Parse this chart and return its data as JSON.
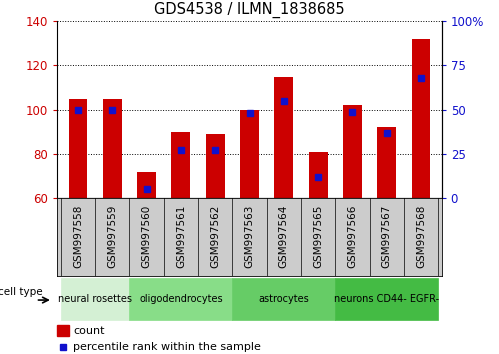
{
  "title": "GDS4538 / ILMN_1838685",
  "samples": [
    "GSM997558",
    "GSM997559",
    "GSM997560",
    "GSM997561",
    "GSM997562",
    "GSM997563",
    "GSM997564",
    "GSM997565",
    "GSM997566",
    "GSM997567",
    "GSM997568"
  ],
  "count_values": [
    105,
    105,
    72,
    90,
    89,
    100,
    115,
    81,
    102,
    92,
    132
  ],
  "percentile_values": [
    50,
    50,
    5,
    27,
    27,
    48,
    55,
    12,
    49,
    37,
    68
  ],
  "ylim": [
    60,
    140
  ],
  "yticks_left": [
    60,
    80,
    100,
    120,
    140
  ],
  "yticks_right_vals": [
    0,
    25,
    50,
    75,
    100
  ],
  "yticks_right_labels": [
    "0",
    "25",
    "50",
    "75",
    "100%"
  ],
  "bar_color": "#cc0000",
  "pct_color": "#1111cc",
  "cell_type_label": "cell type",
  "legend_count": "count",
  "legend_pct": "percentile rank within the sample",
  "tick_color_left": "#cc0000",
  "tick_color_right": "#1111cc",
  "bar_width": 0.55,
  "baseline": 60,
  "groups": [
    {
      "label": "neural rosettes",
      "start": 0,
      "end": 2,
      "color": "#d4f0d4"
    },
    {
      "label": "oligodendrocytes",
      "start": 2,
      "end": 5,
      "color": "#88dd88"
    },
    {
      "label": "astrocytes",
      "start": 5,
      "end": 8,
      "color": "#66cc66"
    },
    {
      "label": "neurons CD44- EGFR-",
      "start": 8,
      "end": 11,
      "color": "#44bb44"
    }
  ],
  "xlabels_bg": "#cccccc",
  "plot_bg": "#ffffff",
  "spine_color": "#000000"
}
